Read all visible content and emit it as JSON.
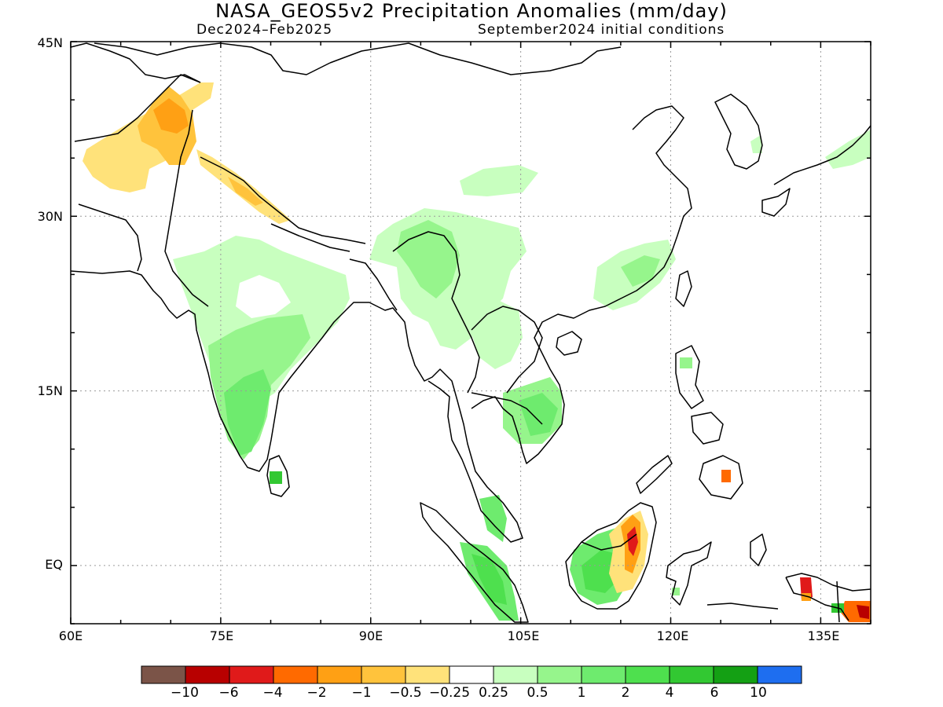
{
  "title": "NASA_GEOS5v2 Precipitation Anomalies (mm/day)",
  "subtitle_left": "Dec2024–Feb2025",
  "subtitle_right": "September2024 initial conditions",
  "lat_labels": [
    "45N",
    "30N",
    "15N",
    "EQ"
  ],
  "lon_labels": [
    "60E",
    "75E",
    "90E",
    "105E",
    "120E",
    "135E"
  ],
  "colorbar": {
    "colors": [
      "#7b5448",
      "#b80000",
      "#e01a1a",
      "#ff6a00",
      "#ffa014",
      "#ffc33c",
      "#ffe27a",
      "#ffffff",
      "#c8ffbf",
      "#96f58c",
      "#6eeb6e",
      "#4ee04e",
      "#32c832",
      "#14a014",
      "#1e6ef0"
    ],
    "labels": [
      "−10",
      "−6",
      "−4",
      "−2",
      "−1",
      "−0.5",
      "−0.25",
      "0.25",
      "0.5",
      "1",
      "2",
      "4",
      "6",
      "10"
    ]
  },
  "map_data": {
    "lon_range": [
      60,
      140
    ],
    "lat_range": [
      -5,
      45
    ],
    "grid_lons": [
      75,
      90,
      105,
      120,
      135
    ],
    "grid_lats": [
      30,
      15,
      0
    ],
    "anomaly_regions": [
      {
        "area": "Afghanistan / Pakistan",
        "value": "-0.5 to -1"
      },
      {
        "area": "Northern Pakistan / Kashmir",
        "value": "-1 to -2"
      },
      {
        "area": "Western Himalaya",
        "value": "-0.5 to -1"
      },
      {
        "area": "Central India",
        "value": "0.25 to 0.5"
      },
      {
        "area": "South India",
        "value": "1 to 2"
      },
      {
        "area": "Sri Lanka",
        "value": "4 to 6"
      },
      {
        "area": "Eastern Himalaya / Tibet",
        "value": "0.5 to 1"
      },
      {
        "area": "Southern China",
        "value": "0.25 to 0.5"
      },
      {
        "area": "Cambodia / Vietnam",
        "value": "1 to 2"
      },
      {
        "area": "Sumatra",
        "value": "1 to 4"
      },
      {
        "area": "Western Borneo",
        "value": "1 to 2"
      },
      {
        "area": "Eastern Borneo",
        "value": "-1 to -6"
      },
      {
        "area": "Mindanao",
        "value": "-2 to -4"
      },
      {
        "area": "New Guinea",
        "value": "-2 to -6"
      }
    ]
  }
}
